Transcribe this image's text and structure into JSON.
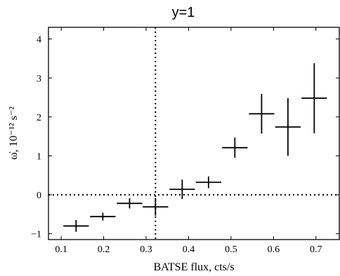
{
  "chart_data": {
    "type": "scatter",
    "title": "y=1",
    "xlabel": "BATSE flux, cts/s",
    "ylabel": "ω̇, 10⁻¹² s⁻²",
    "xlim": [
      0.07,
      0.755
    ],
    "ylim": [
      -1.15,
      4.3
    ],
    "xticks": [
      "0.1",
      "0.2",
      "0.3",
      "0.4",
      "0.5",
      "0.6",
      "0.7"
    ],
    "xtick_values": [
      0.1,
      0.2,
      0.3,
      0.4,
      0.5,
      0.6,
      0.7
    ],
    "yticks": [
      "−1",
      "0",
      "1",
      "2",
      "3",
      "4"
    ],
    "ytick_values": [
      -1,
      0,
      1,
      2,
      3,
      4
    ],
    "reference_lines": {
      "vertical_x": 0.322,
      "horizontal_y": 0
    },
    "grid": false,
    "points": [
      {
        "x": 0.135,
        "y": -0.8,
        "xerr": 0.03,
        "yerr": 0.15
      },
      {
        "x": 0.198,
        "y": -0.56,
        "xerr": 0.03,
        "yerr": 0.1
      },
      {
        "x": 0.261,
        "y": -0.22,
        "xerr": 0.03,
        "yerr": 0.13
      },
      {
        "x": 0.322,
        "y": -0.31,
        "xerr": 0.03,
        "yerr": 0.23
      },
      {
        "x": 0.385,
        "y": 0.14,
        "xerr": 0.03,
        "yerr": 0.25
      },
      {
        "x": 0.447,
        "y": 0.32,
        "xerr": 0.03,
        "yerr": 0.15
      },
      {
        "x": 0.509,
        "y": 1.21,
        "xerr": 0.03,
        "yerr": 0.26
      },
      {
        "x": 0.572,
        "y": 2.08,
        "xerr": 0.03,
        "yerr": 0.51
      },
      {
        "x": 0.634,
        "y": 1.74,
        "xerr": 0.03,
        "yerr": 0.74
      },
      {
        "x": 0.696,
        "y": 2.48,
        "xerr": 0.03,
        "yerr": 0.9
      }
    ]
  }
}
